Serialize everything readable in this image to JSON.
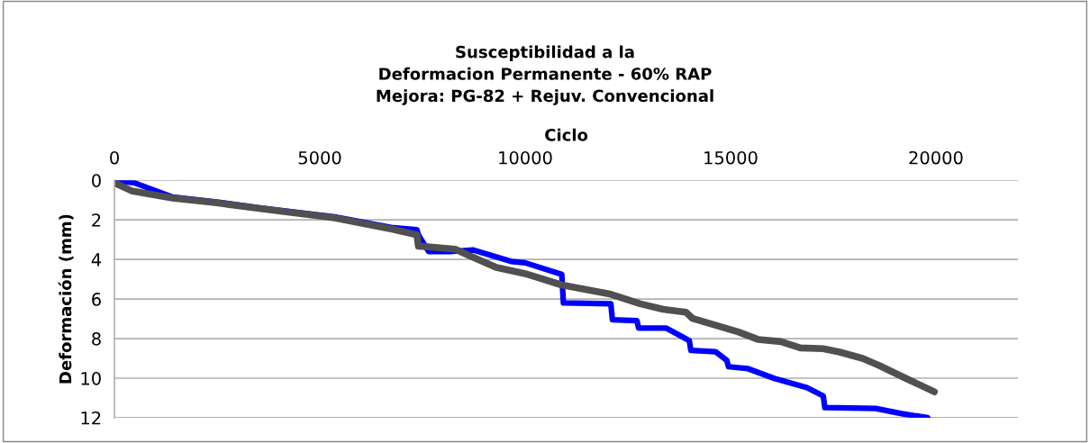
{
  "chart_data": {
    "type": "line",
    "title": "Susceptibilidad a la\nDeformacion Permanente - 60% RAP\nMejora: PG-82 + Rejuv. Convencional",
    "xlabel": "Ciclo",
    "ylabel": "Deformación (mm)",
    "xlim": [
      0,
      22000
    ],
    "xticks": [
      0,
      5000,
      10000,
      15000,
      20000
    ],
    "ylim": [
      12,
      0
    ],
    "yticks": [
      0,
      2,
      4,
      6,
      8,
      10,
      12
    ],
    "grid": "y",
    "marker": "none",
    "line_style": "solid",
    "series": [
      {
        "color": "#0000ff",
        "x": [
          0,
          488,
          1418,
          2493,
          3567,
          5359,
          6790,
          7364,
          7400,
          7650,
          8165,
          8724,
          9656,
          10000,
          10891,
          10931,
          12085,
          12125,
          12722,
          12761,
          13438,
          13995,
          14035,
          14632,
          14910,
          14950,
          15427,
          16064,
          16860,
          17257,
          17296,
          18530,
          19167,
          19800
        ],
        "values": [
          0,
          0.13,
          0.85,
          1.1,
          1.4,
          1.85,
          2.4,
          2.5,
          2.76,
          3.6,
          3.6,
          3.52,
          4.1,
          4.17,
          4.76,
          6.2,
          6.24,
          7.05,
          7.09,
          7.47,
          7.47,
          8.1,
          8.6,
          8.66,
          9.1,
          9.42,
          9.52,
          10.01,
          10.48,
          10.9,
          11.49,
          11.53,
          11.79,
          12
        ]
      },
      {
        "color": "#505050",
        "x": [
          0,
          416,
          1418,
          2493,
          3567,
          5359,
          6790,
          7364,
          7400,
          7440,
          8294,
          8582,
          9297,
          10000,
          10891,
          12085,
          12801,
          13358,
          13915,
          14074,
          15188,
          15666,
          16223,
          16700,
          17257,
          17655,
          18212,
          18610,
          19247,
          19963
        ],
        "values": [
          0.13,
          0.53,
          0.9,
          1.14,
          1.43,
          1.9,
          2.48,
          2.76,
          3.33,
          3.33,
          3.48,
          3.75,
          4.4,
          4.72,
          5.29,
          5.76,
          6.24,
          6.52,
          6.67,
          6.98,
          7.66,
          8.04,
          8.15,
          8.47,
          8.51,
          8.68,
          9.0,
          9.35,
          9.99,
          10.69
        ]
      }
    ]
  }
}
